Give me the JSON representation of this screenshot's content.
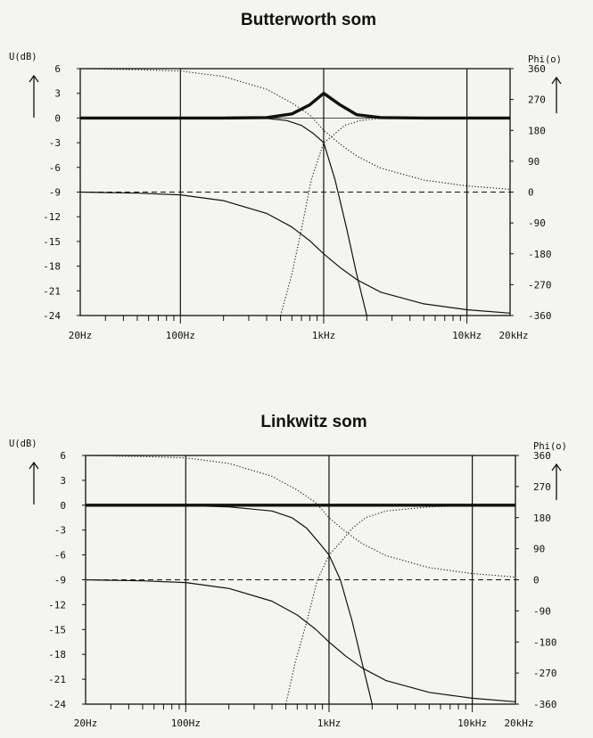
{
  "chart_data": [
    {
      "type": "line",
      "title": "Butterworth som",
      "ylabel_left": "U(dB)",
      "ylabel_right": "Phi(o)",
      "x_scale": "log",
      "xlim": [
        20,
        20000
      ],
      "x_tick_labels": [
        "20Hz",
        "100Hz",
        "1kHz",
        "10kHz",
        "20kHz"
      ],
      "ylim_left": [
        -24,
        6
      ],
      "left_ticks": [
        "6",
        "3",
        "0",
        "-3",
        "-6",
        "-9",
        "-12",
        "-15",
        "-18",
        "-21",
        "-24"
      ],
      "ylim_right": [
        -360,
        360
      ],
      "right_ticks": [
        "360",
        "270",
        "180",
        "90",
        "0",
        "-90",
        "-180",
        "-270",
        "-360"
      ],
      "series": [
        {
          "axis": "left",
          "style": "bold",
          "x": [
            20,
            200,
            400,
            600,
            800,
            1000,
            1300,
            1700,
            2500,
            5000,
            20000
          ],
          "y": [
            0,
            0,
            0.05,
            0.5,
            1.6,
            3.0,
            1.6,
            0.4,
            0.05,
            0,
            0
          ]
        },
        {
          "axis": "left",
          "style": "thin",
          "x": [
            20,
            200,
            400,
            550,
            700,
            850,
            1000,
            1200,
            1450,
            1700,
            2000
          ],
          "y": [
            0,
            0,
            -0.05,
            -0.3,
            -0.9,
            -1.9,
            -3.0,
            -7.5,
            -13.5,
            -19,
            -24
          ]
        },
        {
          "axis": "left",
          "style": "dotted",
          "x": [
            500,
            600,
            700,
            820,
            1000,
            1200,
            1400,
            1800,
            2500,
            4000,
            20000
          ],
          "y": [
            -24,
            -19,
            -13.5,
            -7.5,
            -3.0,
            -1.9,
            -0.9,
            -0.3,
            -0.05,
            0,
            0
          ]
        },
        {
          "axis": "right",
          "style": "dotted",
          "x": [
            20,
            50,
            100,
            200,
            400,
            600,
            800,
            1000,
            1300,
            1700,
            2500,
            5000,
            10000,
            20000
          ],
          "y": [
            360,
            357,
            353,
            337,
            300,
            260,
            225,
            180,
            140,
            105,
            70,
            35,
            18,
            8
          ]
        },
        {
          "axis": "right",
          "style": "dashed",
          "x": [
            20,
            50,
            100,
            200,
            400,
            600,
            800,
            1000,
            1300,
            1700,
            2500,
            5000,
            10000,
            20000
          ],
          "y": [
            0,
            0,
            0,
            0,
            0,
            0,
            0,
            0,
            0,
            0,
            0,
            0,
            0,
            0
          ]
        },
        {
          "axis": "right",
          "style": "thin",
          "x": [
            20,
            50,
            100,
            200,
            400,
            600,
            800,
            1000,
            1300,
            1700,
            2500,
            5000,
            10000,
            20000
          ],
          "y": [
            0,
            -3,
            -8,
            -25,
            -62,
            -102,
            -142,
            -180,
            -220,
            -255,
            -292,
            -326,
            -343,
            -353
          ]
        }
      ]
    },
    {
      "type": "line",
      "title": "Linkwitz som",
      "ylabel_left": "U(dB)",
      "ylabel_right": "Phi(o)",
      "x_scale": "log",
      "xlim": [
        20,
        20000
      ],
      "x_tick_labels": [
        "20Hz",
        "100Hz",
        "1kHz",
        "10kHz",
        "20kHz"
      ],
      "ylim_left": [
        -24,
        6
      ],
      "left_ticks": [
        "6",
        "3",
        "0",
        "-3",
        "-6",
        "-9",
        "-12",
        "-15",
        "-18",
        "-21",
        "-24"
      ],
      "ylim_right": [
        -360,
        360
      ],
      "right_ticks": [
        "360",
        "270",
        "180",
        "90",
        "0",
        "-90",
        "-180",
        "-270",
        "-360"
      ],
      "series": [
        {
          "axis": "left",
          "style": "bold",
          "x": [
            20,
            100,
            1000,
            10000,
            20000
          ],
          "y": [
            0,
            0,
            0,
            0,
            0
          ]
        },
        {
          "axis": "left",
          "style": "thin",
          "x": [
            20,
            100,
            200,
            400,
            550,
            700,
            850,
            1000,
            1200,
            1450,
            1700,
            2000
          ],
          "y": [
            0,
            -0.05,
            -0.2,
            -0.7,
            -1.5,
            -2.8,
            -4.5,
            -6.0,
            -9.0,
            -14,
            -19,
            -24
          ]
        },
        {
          "axis": "left",
          "style": "dotted",
          "x": [
            500,
            580,
            700,
            830,
            1000,
            1200,
            1450,
            1800,
            2500,
            5000,
            10000,
            20000
          ],
          "y": [
            -24,
            -19,
            -14,
            -9.0,
            -6.0,
            -4.5,
            -2.8,
            -1.5,
            -0.7,
            -0.2,
            -0.05,
            0
          ]
        },
        {
          "axis": "right",
          "style": "dotted",
          "x": [
            20,
            50,
            100,
            200,
            400,
            600,
            800,
            1000,
            1300,
            1700,
            2500,
            5000,
            10000,
            20000
          ],
          "y": [
            360,
            357,
            353,
            337,
            300,
            260,
            225,
            180,
            140,
            105,
            70,
            35,
            18,
            8
          ]
        },
        {
          "axis": "right",
          "style": "dashed",
          "x": [
            20,
            50,
            100,
            200,
            400,
            600,
            800,
            1000,
            1300,
            1700,
            2500,
            5000,
            10000,
            20000
          ],
          "y": [
            0,
            0,
            0,
            0,
            0,
            0,
            0,
            0,
            0,
            0,
            0,
            0,
            0,
            0
          ]
        },
        {
          "axis": "right",
          "style": "thin",
          "x": [
            20,
            50,
            100,
            200,
            400,
            600,
            800,
            1000,
            1300,
            1700,
            2500,
            5000,
            10000,
            20000
          ],
          "y": [
            0,
            -3,
            -8,
            -25,
            -62,
            -102,
            -142,
            -180,
            -220,
            -255,
            -292,
            -326,
            -343,
            -353
          ]
        }
      ]
    }
  ]
}
